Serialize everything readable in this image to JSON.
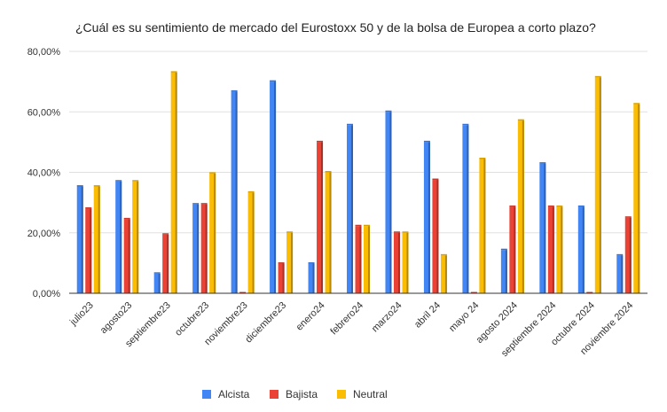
{
  "chart_data": {
    "type": "bar",
    "title": "¿Cuál es su sentimiento de mercado del Eurostoxx 50 y de la bolsa de Europea a corto plazo?",
    "xlabel": "",
    "ylabel": "",
    "ylim": [
      0,
      80
    ],
    "yticks": [
      0,
      20,
      40,
      60,
      80
    ],
    "ytick_labels": [
      "0,00%",
      "20,00%",
      "40,00%",
      "60,00%",
      "80,00%"
    ],
    "categories": [
      "julio23",
      "agosto23",
      "septiembre23",
      "octubre23",
      "noviembre23",
      "diciembre23",
      "enero24",
      "febrero24",
      "marzo24",
      "abril 24",
      "mayo 24",
      "agosto 2024",
      "septiembre 2024",
      "octubre 2024",
      "noviembre 2024"
    ],
    "series": [
      {
        "name": "Alcista",
        "color": "#4285f4",
        "values": [
          35.3,
          37.0,
          6.5,
          29.4,
          66.7,
          70.0,
          9.8,
          55.6,
          60.0,
          50.0,
          55.6,
          14.3,
          42.9,
          28.6,
          12.5
        ]
      },
      {
        "name": "Bajista",
        "color": "#ea4335",
        "values": [
          28.0,
          24.5,
          19.4,
          29.4,
          0.0,
          9.8,
          50.0,
          22.2,
          20.0,
          37.5,
          0.0,
          28.6,
          28.6,
          0.0,
          25.0
        ]
      },
      {
        "name": "Neutral",
        "color": "#fbbc04",
        "values": [
          35.3,
          37.0,
          73.0,
          39.6,
          33.3,
          20.0,
          40.0,
          22.2,
          20.0,
          12.5,
          44.4,
          57.1,
          28.6,
          71.4,
          62.5
        ]
      }
    ],
    "grid": true,
    "legend_position": "bottom-center"
  }
}
